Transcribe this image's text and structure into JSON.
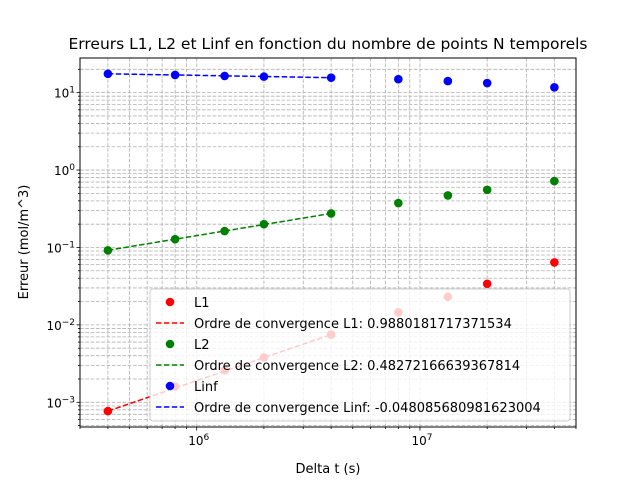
{
  "chart_data": {
    "type": "scatter",
    "title": "Erreurs L1, L2 et Linf en fonction du nombre de points N temporels",
    "xlabel": "Delta t (s)",
    "ylabel": "Erreur (mol/m^3)",
    "xscale": "log",
    "yscale": "log",
    "xlim": [
      300000,
      50000000
    ],
    "ylim": [
      0.00048,
      28
    ],
    "grid": true,
    "legend_position": "bottom-right",
    "x_tick_labels": [
      {
        "value": 1000000,
        "base": "10",
        "exp": "6"
      },
      {
        "value": 10000000,
        "base": "10",
        "exp": "7"
      }
    ],
    "y_tick_labels": [
      {
        "value": 0.001,
        "base": "10",
        "exp": "−3"
      },
      {
        "value": 0.01,
        "base": "10",
        "exp": "−2"
      },
      {
        "value": 0.1,
        "base": "10",
        "exp": "−1"
      },
      {
        "value": 1,
        "base": "10",
        "exp": "0"
      },
      {
        "value": 10,
        "base": "10",
        "exp": "1"
      }
    ],
    "series": [
      {
        "name": "L1",
        "kind": "points",
        "color": "#ff0000",
        "x": [
          400000,
          800000,
          1333333,
          2000000,
          4000000,
          8000000,
          13333333,
          20000000,
          40000000
        ],
        "y": [
          0.00077,
          0.0016,
          0.0026,
          0.0038,
          0.0075,
          0.0145,
          0.023,
          0.034,
          0.064
        ]
      },
      {
        "name": "Ordre de convergence L1: 0.9880181717371534",
        "kind": "dashed-line",
        "color": "#ff0000",
        "x": [
          400000,
          4000000
        ],
        "y": [
          0.00077,
          0.0075
        ]
      },
      {
        "name": "L2",
        "kind": "points",
        "color": "#008000",
        "x": [
          400000,
          800000,
          1333333,
          2000000,
          4000000,
          8000000,
          13333333,
          20000000,
          40000000
        ],
        "y": [
          0.092,
          0.128,
          0.163,
          0.2,
          0.275,
          0.375,
          0.47,
          0.555,
          0.72
        ]
      },
      {
        "name": "Ordre de convergence L2: 0.48272166639367814",
        "kind": "dashed-line",
        "color": "#008000",
        "x": [
          400000,
          4000000
        ],
        "y": [
          0.092,
          0.275
        ]
      },
      {
        "name": "Linf",
        "kind": "points",
        "color": "#0000ff",
        "x": [
          400000,
          800000,
          1333333,
          2000000,
          4000000,
          8000000,
          13333333,
          20000000,
          40000000
        ],
        "y": [
          17.5,
          16.9,
          16.4,
          16.1,
          15.6,
          14.9,
          14.1,
          13.3,
          11.7
        ]
      },
      {
        "name": "Ordre de convergence Linf: -0.048085680981623004",
        "kind": "dashed-line",
        "color": "#0000ff",
        "x": [
          400000,
          4000000
        ],
        "y": [
          17.5,
          15.6
        ]
      }
    ]
  }
}
